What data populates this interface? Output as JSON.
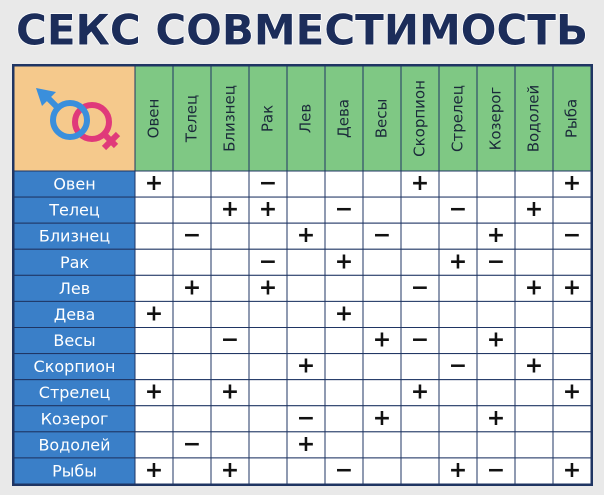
{
  "title": "СЕКС СОВМЕСТИМОСТЬ",
  "table": {
    "columns": [
      "Овен",
      "Телец",
      "Близнец",
      "Рак",
      "Лев",
      "Дева",
      "Весы",
      "Скорпион",
      "Стрелец",
      "Козерог",
      "Водолей",
      "Рыба"
    ],
    "rows": [
      {
        "label": "Овен",
        "cells": [
          "+",
          null,
          null,
          "−",
          null,
          null,
          null,
          "+",
          null,
          null,
          null,
          "+"
        ]
      },
      {
        "label": "Телец",
        "cells": [
          null,
          null,
          "+",
          "+",
          null,
          "−",
          null,
          null,
          "−",
          null,
          "+",
          null
        ]
      },
      {
        "label": "Близнец",
        "cells": [
          null,
          "−",
          null,
          null,
          "+",
          null,
          "−",
          null,
          null,
          "+",
          null,
          "−"
        ]
      },
      {
        "label": "Рак",
        "cells": [
          null,
          null,
          null,
          "−",
          null,
          "+",
          null,
          null,
          "+",
          "−",
          null,
          null
        ]
      },
      {
        "label": "Лев",
        "cells": [
          null,
          "+",
          null,
          "+",
          null,
          null,
          null,
          "−",
          null,
          null,
          "+",
          "+"
        ]
      },
      {
        "label": "Дева",
        "cells": [
          "+",
          null,
          null,
          null,
          null,
          "+",
          null,
          null,
          null,
          null,
          null,
          null
        ]
      },
      {
        "label": "Весы",
        "cells": [
          null,
          null,
          "−",
          null,
          null,
          null,
          "+",
          "−",
          null,
          "+",
          null,
          null
        ]
      },
      {
        "label": "Скорпион",
        "cells": [
          null,
          null,
          null,
          null,
          "+",
          null,
          null,
          null,
          "−",
          null,
          "+",
          null
        ]
      },
      {
        "label": "Стрелец",
        "cells": [
          "+",
          null,
          "+",
          null,
          null,
          null,
          null,
          "+",
          null,
          null,
          null,
          "+"
        ]
      },
      {
        "label": "Козерог",
        "cells": [
          null,
          null,
          null,
          null,
          "−",
          null,
          "+",
          null,
          null,
          "+",
          null,
          null
        ]
      },
      {
        "label": "Водолей",
        "cells": [
          null,
          "−",
          null,
          null,
          "+",
          null,
          null,
          null,
          null,
          null,
          null,
          null
        ]
      },
      {
        "label": "Рыбы",
        "cells": [
          "+",
          null,
          "+",
          null,
          null,
          "−",
          null,
          null,
          "+",
          "−",
          null,
          "+"
        ]
      }
    ]
  }
}
